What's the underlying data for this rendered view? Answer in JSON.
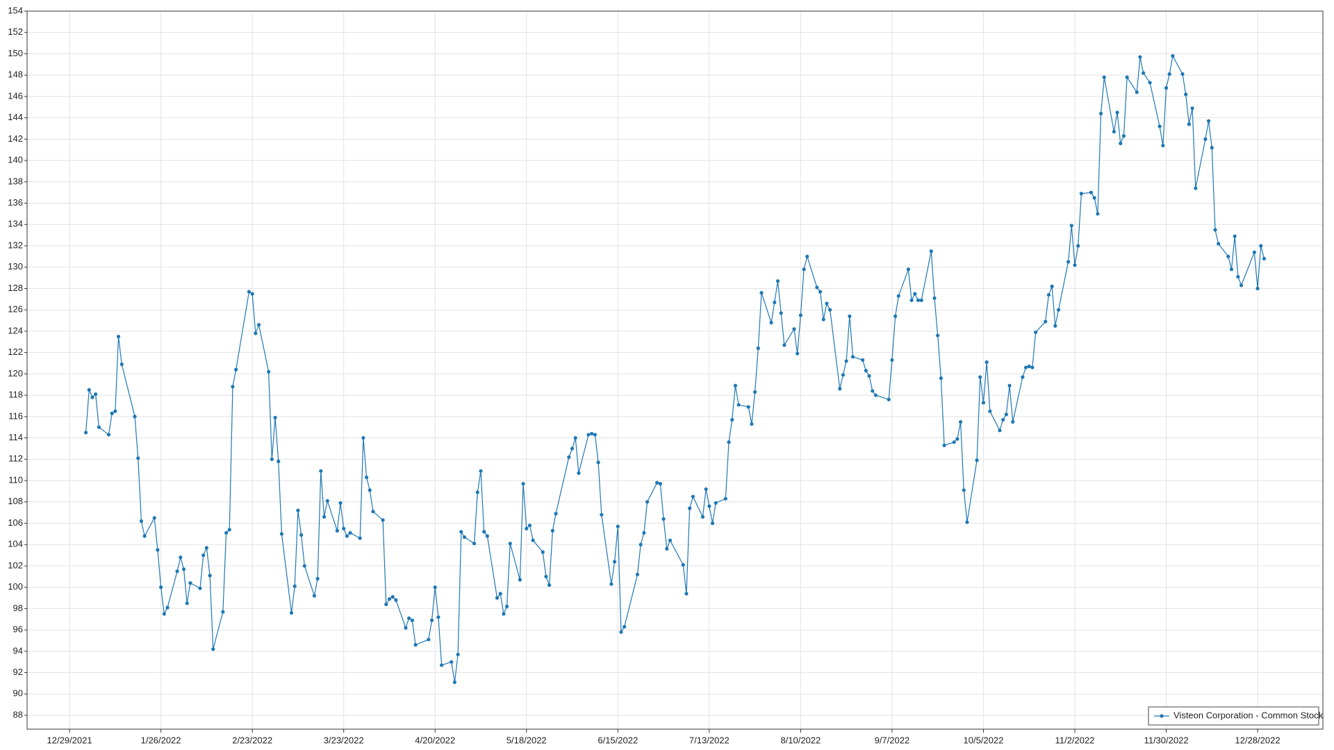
{
  "chart_data": {
    "type": "line",
    "x": [
      "1/3/2022",
      "1/4/2022",
      "1/5/2022",
      "1/6/2022",
      "1/7/2022",
      "1/10/2022",
      "1/11/2022",
      "1/12/2022",
      "1/13/2022",
      "1/14/2022",
      "1/18/2022",
      "1/19/2022",
      "1/20/2022",
      "1/21/2022",
      "1/24/2022",
      "1/25/2022",
      "1/26/2022",
      "1/27/2022",
      "1/28/2022",
      "1/31/2022",
      "2/1/2022",
      "2/2/2022",
      "2/3/2022",
      "2/4/2022",
      "2/7/2022",
      "2/8/2022",
      "2/9/2022",
      "2/10/2022",
      "2/11/2022",
      "2/14/2022",
      "2/15/2022",
      "2/16/2022",
      "2/17/2022",
      "2/18/2022",
      "2/22/2022",
      "2/23/2022",
      "2/24/2022",
      "2/25/2022",
      "2/28/2022",
      "3/1/2022",
      "3/2/2022",
      "3/3/2022",
      "3/4/2022",
      "3/7/2022",
      "3/8/2022",
      "3/9/2022",
      "3/10/2022",
      "3/11/2022",
      "3/14/2022",
      "3/15/2022",
      "3/16/2022",
      "3/17/2022",
      "3/18/2022",
      "3/21/2022",
      "3/22/2022",
      "3/23/2022",
      "3/24/2022",
      "3/25/2022",
      "3/28/2022",
      "3/29/2022",
      "3/30/2022",
      "3/31/2022",
      "4/1/2022",
      "4/4/2022",
      "4/5/2022",
      "4/6/2022",
      "4/7/2022",
      "4/8/2022",
      "4/11/2022",
      "4/12/2022",
      "4/13/2022",
      "4/14/2022",
      "4/18/2022",
      "4/19/2022",
      "4/20/2022",
      "4/21/2022",
      "4/22/2022",
      "4/25/2022",
      "4/26/2022",
      "4/27/2022",
      "4/28/2022",
      "4/29/2022",
      "5/2/2022",
      "5/3/2022",
      "5/4/2022",
      "5/5/2022",
      "5/6/2022",
      "5/9/2022",
      "5/10/2022",
      "5/11/2022",
      "5/12/2022",
      "5/13/2022",
      "5/16/2022",
      "5/17/2022",
      "5/18/2022",
      "5/19/2022",
      "5/20/2022",
      "5/23/2022",
      "5/24/2022",
      "5/25/2022",
      "5/26/2022",
      "5/27/2022",
      "5/31/2022",
      "6/1/2022",
      "6/2/2022",
      "6/3/2022",
      "6/6/2022",
      "6/7/2022",
      "6/8/2022",
      "6/9/2022",
      "6/10/2022",
      "6/13/2022",
      "6/14/2022",
      "6/15/2022",
      "6/16/2022",
      "6/17/2022",
      "6/21/2022",
      "6/22/2022",
      "6/23/2022",
      "6/24/2022",
      "6/27/2022",
      "6/28/2022",
      "6/29/2022",
      "6/30/2022",
      "7/1/2022",
      "7/5/2022",
      "7/6/2022",
      "7/7/2022",
      "7/8/2022",
      "7/11/2022",
      "7/12/2022",
      "7/13/2022",
      "7/14/2022",
      "7/15/2022",
      "7/18/2022",
      "7/19/2022",
      "7/20/2022",
      "7/21/2022",
      "7/22/2022",
      "7/25/2022",
      "7/26/2022",
      "7/27/2022",
      "7/28/2022",
      "7/29/2022",
      "8/1/2022",
      "8/2/2022",
      "8/3/2022",
      "8/4/2022",
      "8/5/2022",
      "8/8/2022",
      "8/9/2022",
      "8/10/2022",
      "8/11/2022",
      "8/12/2022",
      "8/15/2022",
      "8/16/2022",
      "8/17/2022",
      "8/18/2022",
      "8/19/2022",
      "8/22/2022",
      "8/23/2022",
      "8/24/2022",
      "8/25/2022",
      "8/26/2022",
      "8/29/2022",
      "8/30/2022",
      "8/31/2022",
      "9/1/2022",
      "9/2/2022",
      "9/6/2022",
      "9/7/2022",
      "9/8/2022",
      "9/9/2022",
      "9/12/2022",
      "9/13/2022",
      "9/14/2022",
      "9/15/2022",
      "9/16/2022",
      "9/19/2022",
      "9/20/2022",
      "9/21/2022",
      "9/22/2022",
      "9/23/2022",
      "9/26/2022",
      "9/27/2022",
      "9/28/2022",
      "9/29/2022",
      "9/30/2022",
      "10/3/2022",
      "10/4/2022",
      "10/5/2022",
      "10/6/2022",
      "10/7/2022",
      "10/10/2022",
      "10/11/2022",
      "10/12/2022",
      "10/13/2022",
      "10/14/2022",
      "10/17/2022",
      "10/18/2022",
      "10/19/2022",
      "10/20/2022",
      "10/21/2022",
      "10/24/2022",
      "10/25/2022",
      "10/26/2022",
      "10/27/2022",
      "10/28/2022",
      "10/31/2022",
      "11/1/2022",
      "11/2/2022",
      "11/3/2022",
      "11/4/2022",
      "11/7/2022",
      "11/8/2022",
      "11/9/2022",
      "11/10/2022",
      "11/11/2022",
      "11/14/2022",
      "11/15/2022",
      "11/16/2022",
      "11/17/2022",
      "11/18/2022",
      "11/21/2022",
      "11/22/2022",
      "11/23/2022",
      "11/25/2022",
      "11/28/2022",
      "11/29/2022",
      "11/30/2022",
      "12/1/2022",
      "12/2/2022",
      "12/5/2022",
      "12/6/2022",
      "12/7/2022",
      "12/8/2022",
      "12/9/2022",
      "12/12/2022",
      "12/13/2022",
      "12/14/2022",
      "12/15/2022",
      "12/16/2022",
      "12/19/2022",
      "12/20/2022",
      "12/21/2022",
      "12/22/2022",
      "12/23/2022",
      "12/27/2022",
      "12/28/2022",
      "12/29/2022",
      "12/30/2022"
    ],
    "series": [
      {
        "name": "Visteon Corporation - Common Stock",
        "color": "#1f77b4",
        "values": [
          114.5,
          118.5,
          117.8,
          118.1,
          115.0,
          114.3,
          116.3,
          116.5,
          123.5,
          120.9,
          116.0,
          112.1,
          106.2,
          104.8,
          106.5,
          103.5,
          100.0,
          97.5,
          98.1,
          101.5,
          102.8,
          101.7,
          98.5,
          100.4,
          99.9,
          103.0,
          103.7,
          101.1,
          94.2,
          97.7,
          105.1,
          105.4,
          118.8,
          120.4,
          127.7,
          127.5,
          123.8,
          124.6,
          120.2,
          112.0,
          115.9,
          111.8,
          105.0,
          97.6,
          100.1,
          107.2,
          104.9,
          102.0,
          99.2,
          100.8,
          110.9,
          106.6,
          108.1,
          105.3,
          107.9,
          105.5,
          104.8,
          105.1,
          104.6,
          114.0,
          110.3,
          109.1,
          107.1,
          106.3,
          98.4,
          98.9,
          99.1,
          98.8,
          96.2,
          97.1,
          96.9,
          94.6,
          95.1,
          96.9,
          100.0,
          97.2,
          92.7,
          93.0,
          91.1,
          93.7,
          105.2,
          104.7,
          104.1,
          108.9,
          110.9,
          105.2,
          104.8,
          99.0,
          99.4,
          97.5,
          98.2,
          104.1,
          100.7,
          109.7,
          105.5,
          105.8,
          104.4,
          103.3,
          101.0,
          100.2,
          105.3,
          106.9,
          112.2,
          113.0,
          114.0,
          110.7,
          114.3,
          114.4,
          114.3,
          111.7,
          106.8,
          100.3,
          102.4,
          105.7,
          95.8,
          96.3,
          101.2,
          104.0,
          105.1,
          108.0,
          109.8,
          109.7,
          106.4,
          103.6,
          104.4,
          102.1,
          99.4,
          107.4,
          108.5,
          106.6,
          109.2,
          107.6,
          106.0,
          107.9,
          108.3,
          113.6,
          115.7,
          118.9,
          117.1,
          116.9,
          115.3,
          118.3,
          122.4,
          127.6,
          124.8,
          126.7,
          128.7,
          125.7,
          122.7,
          124.2,
          121.9,
          125.5,
          129.8,
          131.0,
          128.1,
          127.7,
          125.1,
          126.6,
          126.0,
          118.6,
          119.9,
          121.2,
          125.4,
          121.6,
          121.3,
          120.3,
          119.8,
          118.4,
          118.0,
          117.6,
          121.3,
          125.4,
          127.3,
          129.8,
          126.9,
          127.5,
          126.9,
          126.9,
          131.5,
          127.1,
          123.6,
          119.6,
          113.3,
          113.6,
          113.9,
          115.5,
          109.1,
          106.1,
          111.9,
          119.7,
          117.3,
          121.1,
          116.5,
          114.7,
          115.7,
          116.2,
          118.9,
          115.5,
          119.7,
          120.6,
          120.7,
          120.6,
          123.9,
          124.9,
          127.4,
          128.2,
          124.5,
          126.0,
          130.5,
          133.9,
          130.2,
          132.0,
          136.9,
          137.0,
          136.5,
          135.0,
          144.4,
          147.8,
          142.7,
          144.5,
          141.6,
          142.3,
          147.8,
          146.4,
          149.7,
          148.2,
          147.3,
          143.2,
          141.4,
          146.8,
          148.1,
          149.8,
          148.1,
          146.2,
          143.4,
          144.9,
          137.4,
          142.0,
          143.7,
          141.2,
          133.5,
          132.2,
          131.0,
          129.8,
          132.9,
          129.1,
          128.3,
          131.4,
          128.0,
          132.0,
          130.8
        ]
      }
    ],
    "xlim": [
      "12/16/2021",
      "1/17/2023"
    ],
    "xticks": [
      "12/29/2021",
      "1/26/2022",
      "2/23/2022",
      "3/23/2022",
      "4/20/2022",
      "5/18/2022",
      "6/15/2022",
      "7/13/2022",
      "8/10/2022",
      "9/7/2022",
      "10/5/2022",
      "11/2/2022",
      "11/30/2022",
      "12/28/2022"
    ],
    "ylim": [
      86.7,
      154
    ],
    "yticks": [
      88,
      90,
      92,
      94,
      96,
      98,
      100,
      102,
      104,
      106,
      108,
      110,
      112,
      114,
      116,
      118,
      120,
      122,
      124,
      126,
      128,
      130,
      132,
      134,
      136,
      138,
      140,
      142,
      144,
      146,
      148,
      150,
      152,
      154
    ],
    "grid": true,
    "legend": "lower right"
  }
}
